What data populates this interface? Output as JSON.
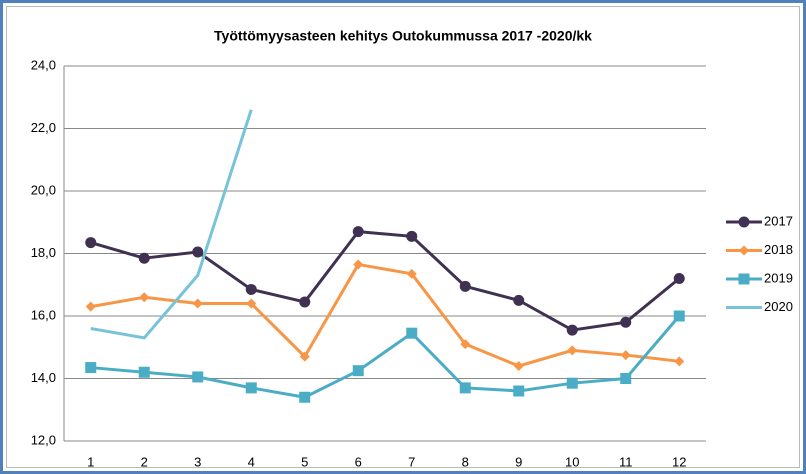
{
  "chart_data": {
    "type": "line",
    "title": "Työttömyysasteen kehitys Outokummussa 2017 -2020/kk",
    "categories": [
      "1",
      "2",
      "3",
      "4",
      "5",
      "6",
      "7",
      "8",
      "9",
      "10",
      "11",
      "12"
    ],
    "series": [
      {
        "name": "2017",
        "color": "#403152",
        "marker": "circle",
        "values": [
          18.35,
          17.85,
          18.05,
          16.85,
          16.45,
          18.7,
          18.55,
          16.95,
          16.5,
          15.55,
          15.8,
          17.2
        ]
      },
      {
        "name": "2018",
        "color": "#f79646",
        "marker": "diamond",
        "values": [
          16.3,
          16.6,
          16.4,
          16.4,
          14.7,
          17.65,
          17.35,
          15.1,
          14.4,
          14.9,
          14.75,
          14.55
        ]
      },
      {
        "name": "2019",
        "color": "#4bacc6",
        "marker": "square",
        "values": [
          14.35,
          14.2,
          14.05,
          13.7,
          13.4,
          14.25,
          15.45,
          13.7,
          13.6,
          13.85,
          14.0,
          16.0
        ]
      },
      {
        "name": "2020",
        "color": "#77c3d9",
        "marker": "none",
        "values": [
          15.6,
          15.3,
          17.3,
          22.6,
          null,
          null,
          null,
          null,
          null,
          null,
          null,
          null
        ]
      }
    ],
    "ylim": [
      12,
      24
    ],
    "yticks": [
      {
        "value": 12,
        "label": "12,0"
      },
      {
        "value": 14,
        "label": "14,0"
      },
      {
        "value": 16,
        "label": "16,0"
      },
      {
        "value": 18,
        "label": "18,0"
      },
      {
        "value": 20,
        "label": "20,0"
      },
      {
        "value": 22,
        "label": "22,0"
      },
      {
        "value": 24,
        "label": "24,0"
      }
    ],
    "grid": true,
    "legend": "right"
  }
}
